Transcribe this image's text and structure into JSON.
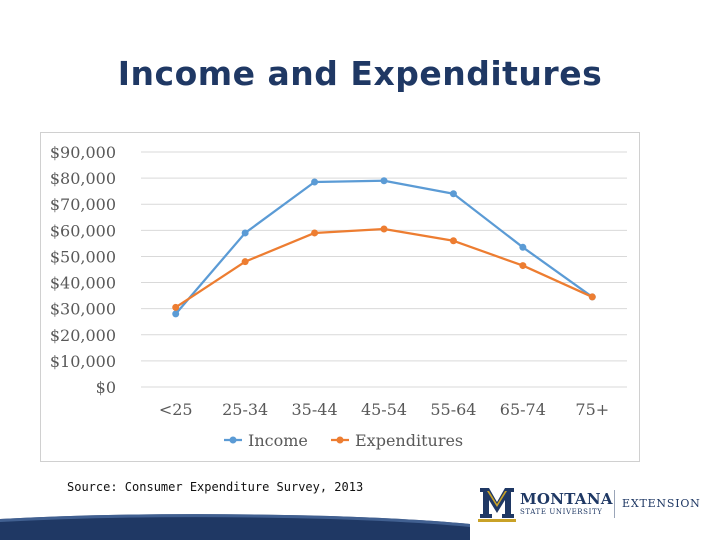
{
  "slide": {
    "title": "Income and Expenditures",
    "source": "Source: Consumer Expenditure Survey, 2013"
  },
  "logo": {
    "name": "MONTANA",
    "sub": "STATE UNIVERSITY",
    "extension": "EXTENSION"
  },
  "colors": {
    "title": "#1f3864",
    "income": "#5b9bd5",
    "expenditures": "#ed7d31",
    "gold": "#c9a227",
    "navy": "#1f3864"
  },
  "chart_data": {
    "type": "line",
    "categories": [
      "<25",
      "25-34",
      "35-44",
      "45-54",
      "55-64",
      "65-74",
      "75+"
    ],
    "series": [
      {
        "name": "Income",
        "color": "#5b9bd5",
        "values": [
          28000,
          59000,
          78500,
          79000,
          74000,
          53500,
          34500
        ]
      },
      {
        "name": "Expenditures",
        "color": "#ed7d31",
        "values": [
          30500,
          48000,
          59000,
          60500,
          56000,
          46500,
          34500
        ]
      }
    ],
    "ylim": [
      0,
      90000
    ],
    "yticks": [
      0,
      10000,
      20000,
      30000,
      40000,
      50000,
      60000,
      70000,
      80000,
      90000
    ],
    "ytick_labels": [
      "$0",
      "$10,000",
      "$20,000",
      "$30,000",
      "$40,000",
      "$50,000",
      "$60,000",
      "$70,000",
      "$80,000",
      "$90,000"
    ],
    "grid": true,
    "legend": "bottom"
  }
}
